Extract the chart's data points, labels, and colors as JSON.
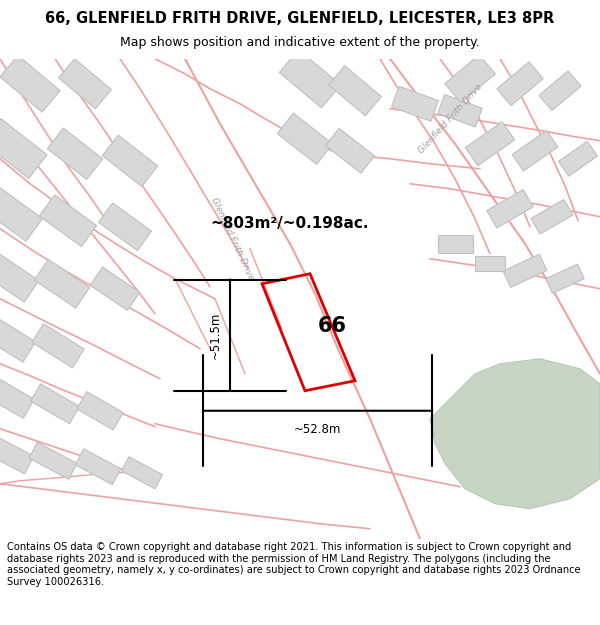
{
  "title_line1": "66, GLENFIELD FRITH DRIVE, GLENFIELD, LEICESTER, LE3 8PR",
  "title_line2": "Map shows position and indicative extent of the property.",
  "footer": "Contains OS data © Crown copyright and database right 2021. This information is subject to Crown copyright and database rights 2023 and is reproduced with the permission of HM Land Registry. The polygons (including the associated geometry, namely x, y co-ordinates) are subject to Crown copyright and database rights 2023 Ordnance Survey 100026316.",
  "road_color": "#f0a0a0",
  "building_face": "#d8d8d8",
  "building_edge": "#c0c0c0",
  "highlight_color": "#dd0000",
  "green_color": "#c8d5c5",
  "green_edge": "#b0c8b0",
  "label_66": "66",
  "area_label": "~803m²/~0.198ac.",
  "dim_width": "~52.8m",
  "dim_height": "~51.5m",
  "road_label": "Glenfield Frith Drive"
}
